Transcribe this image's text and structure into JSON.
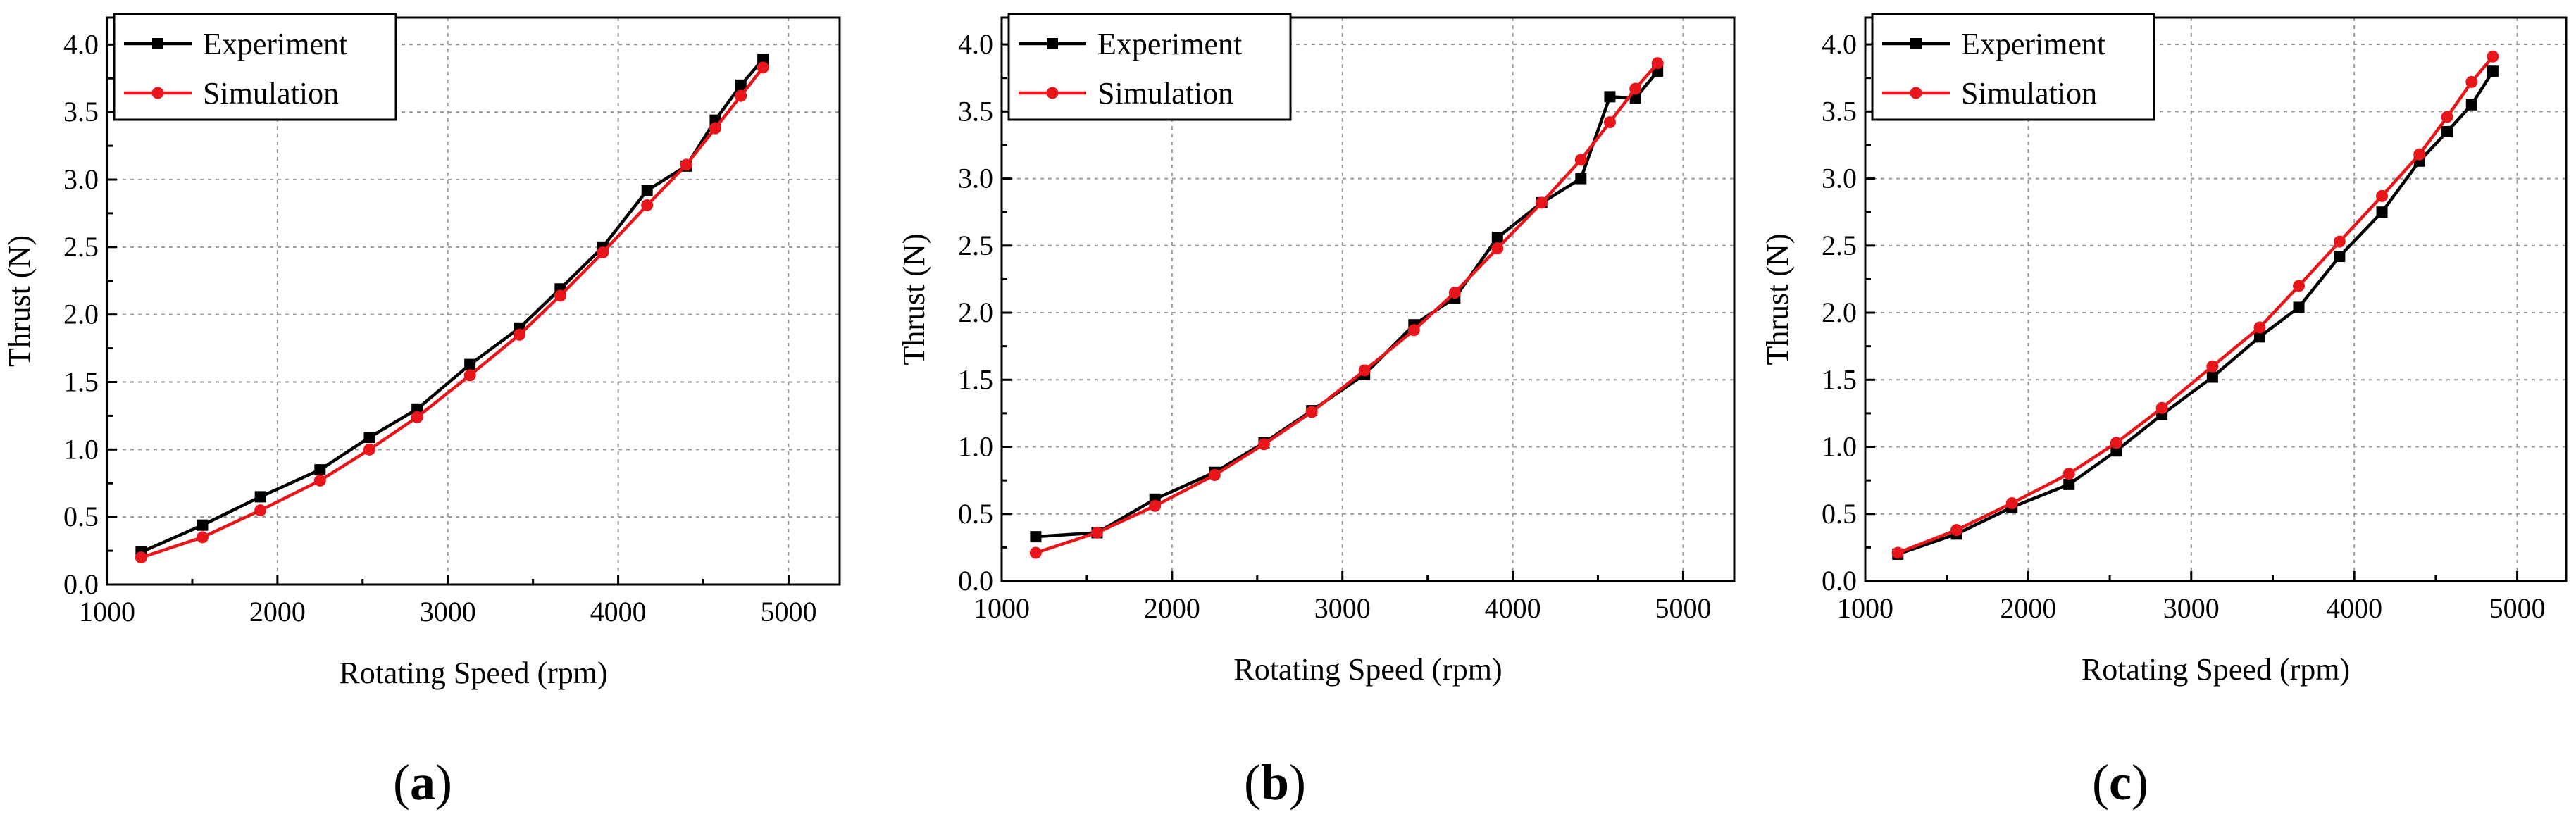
{
  "colors": {
    "experiment": "#000000",
    "simulation": "#e8161b",
    "grid": "#9a9a9a"
  },
  "panels": [
    {
      "label": "a"
    },
    {
      "label": "b"
    },
    {
      "label": "c"
    }
  ],
  "chart_data": [
    {
      "type": "line",
      "xlabel": "Rotating Speed (rpm)",
      "ylabel": "Thrust (N)",
      "xlim": [
        1000,
        5300
      ],
      "ylim": [
        0,
        4.2
      ],
      "xticks": [
        1000,
        2000,
        3000,
        4000,
        5000
      ],
      "xtick_labels": [
        "1000",
        "2000",
        "3000",
        "4000",
        "5000"
      ],
      "yticks": [
        0,
        0.5,
        1,
        1.5,
        2,
        2.5,
        3,
        3.5,
        4
      ],
      "ytick_labels": [
        "0.0",
        "0.5",
        "1.0",
        "1.5",
        "2.0",
        "2.5",
        "3.0",
        "3.5",
        "4.0"
      ],
      "grid": true,
      "legend_position": "top-left",
      "series": [
        {
          "name": "Experiment",
          "marker": "square",
          "color": "#000000",
          "x": [
            1200,
            1560,
            1900,
            2250,
            2540,
            2820,
            3130,
            3420,
            3660,
            3910,
            4170,
            4400,
            4570,
            4720,
            4850
          ],
          "y": [
            0.24,
            0.44,
            0.65,
            0.85,
            1.09,
            1.3,
            1.63,
            1.9,
            2.19,
            2.5,
            2.92,
            3.1,
            3.44,
            3.7,
            3.89
          ]
        },
        {
          "name": "Simulation",
          "marker": "circle",
          "color": "#e8161b",
          "x": [
            1200,
            1560,
            1900,
            2250,
            2540,
            2820,
            3130,
            3420,
            3660,
            3910,
            4170,
            4400,
            4570,
            4720,
            4850
          ],
          "y": [
            0.2,
            0.35,
            0.55,
            0.77,
            1.0,
            1.24,
            1.55,
            1.85,
            2.14,
            2.46,
            2.81,
            3.11,
            3.38,
            3.62,
            3.83
          ]
        }
      ]
    },
    {
      "type": "line",
      "xlabel": "Rotating Speed (rpm)",
      "ylabel": "Thrust (N)",
      "xlim": [
        1000,
        5300
      ],
      "ylim": [
        0,
        4.2
      ],
      "xticks": [
        1000,
        2000,
        3000,
        4000,
        5000
      ],
      "xtick_labels": [
        "1000",
        "2000",
        "3000",
        "4000",
        "5000"
      ],
      "yticks": [
        0,
        0.5,
        1,
        1.5,
        2,
        2.5,
        3,
        3.5,
        4
      ],
      "ytick_labels": [
        "0.0",
        "0.5",
        "1.0",
        "1.5",
        "2.0",
        "2.5",
        "3.0",
        "3.5",
        "4.0"
      ],
      "grid": true,
      "legend_position": "top-left",
      "series": [
        {
          "name": "Experiment",
          "marker": "square",
          "color": "#000000",
          "x": [
            1200,
            1560,
            1900,
            2250,
            2540,
            2820,
            3130,
            3420,
            3660,
            3910,
            4170,
            4400,
            4570,
            4720,
            4850
          ],
          "y": [
            0.33,
            0.36,
            0.61,
            0.81,
            1.03,
            1.27,
            1.54,
            1.91,
            2.11,
            2.56,
            2.82,
            3.0,
            3.61,
            3.6,
            3.8
          ]
        },
        {
          "name": "Simulation",
          "marker": "circle",
          "color": "#e8161b",
          "x": [
            1200,
            1560,
            1900,
            2250,
            2540,
            2820,
            3130,
            3420,
            3660,
            3910,
            4170,
            4400,
            4570,
            4720,
            4850
          ],
          "y": [
            0.21,
            0.36,
            0.56,
            0.79,
            1.02,
            1.26,
            1.57,
            1.87,
            2.15,
            2.48,
            2.82,
            3.14,
            3.42,
            3.67,
            3.86
          ]
        }
      ]
    },
    {
      "type": "line",
      "xlabel": "Rotating Speed (rpm)",
      "ylabel": "Thrust (N)",
      "xlim": [
        1000,
        5300
      ],
      "ylim": [
        0,
        4.2
      ],
      "xticks": [
        1000,
        2000,
        3000,
        4000,
        5000
      ],
      "xtick_labels": [
        "1000",
        "2000",
        "3000",
        "4000",
        "5000"
      ],
      "yticks": [
        0,
        0.5,
        1,
        1.5,
        2,
        2.5,
        3,
        3.5,
        4
      ],
      "ytick_labels": [
        "0.0",
        "0.5",
        "1.0",
        "1.5",
        "2.0",
        "2.5",
        "3.0",
        "3.5",
        "4.0"
      ],
      "grid": true,
      "legend_position": "top-left",
      "series": [
        {
          "name": "Experiment",
          "marker": "square",
          "color": "#000000",
          "x": [
            1200,
            1560,
            1900,
            2250,
            2540,
            2820,
            3130,
            3420,
            3660,
            3910,
            4170,
            4400,
            4570,
            4720,
            4850
          ],
          "y": [
            0.2,
            0.35,
            0.55,
            0.72,
            0.97,
            1.24,
            1.52,
            1.82,
            2.04,
            2.42,
            2.75,
            3.13,
            3.35,
            3.55,
            3.8
          ]
        },
        {
          "name": "Simulation",
          "marker": "circle",
          "color": "#e8161b",
          "x": [
            1200,
            1560,
            1900,
            2250,
            2540,
            2820,
            3130,
            3420,
            3660,
            3910,
            4170,
            4400,
            4570,
            4720,
            4850
          ],
          "y": [
            0.21,
            0.38,
            0.58,
            0.8,
            1.03,
            1.29,
            1.6,
            1.89,
            2.2,
            2.53,
            2.87,
            3.18,
            3.46,
            3.72,
            3.91
          ]
        }
      ]
    }
  ]
}
